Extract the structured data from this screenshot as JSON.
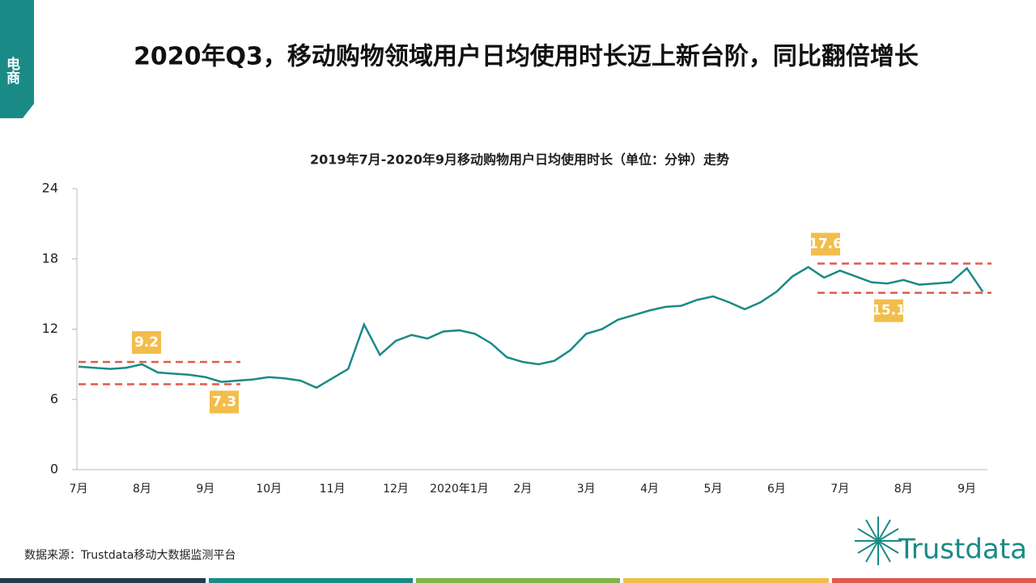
{
  "page": {
    "tab": "电商",
    "headline": "2020年Q3，移动购物领域用户日均使用时长迈上新台阶，同比翻倍增长",
    "source": "数据来源：Trustdata移动大数据监测平台",
    "logo": "Trustdata"
  },
  "chart_data": {
    "type": "line",
    "title": "2019年7月-2020年9月移动购物用户日均使用时长（单位：分钟）走势",
    "categories": [
      "7月",
      null,
      null,
      null,
      "8月",
      null,
      null,
      null,
      "9月",
      null,
      null,
      null,
      "10月",
      null,
      null,
      null,
      "11月",
      null,
      null,
      null,
      "12月",
      null,
      null,
      null,
      "2020年1月",
      null,
      null,
      null,
      "2月",
      null,
      null,
      null,
      "3月",
      null,
      null,
      null,
      "4月",
      null,
      null,
      null,
      "5月",
      null,
      null,
      null,
      "6月",
      null,
      null,
      null,
      "7月",
      null,
      null,
      null,
      "8月",
      null,
      null,
      null,
      "9月",
      null
    ],
    "series": [
      {
        "name": "移动购物用户日均使用时长",
        "color": "#1a8a87",
        "values": [
          8.8,
          8.7,
          8.6,
          8.7,
          9.0,
          8.3,
          8.2,
          8.1,
          7.9,
          7.5,
          7.6,
          7.7,
          7.9,
          7.8,
          7.6,
          7.0,
          7.8,
          8.6,
          12.4,
          9.8,
          11.0,
          11.5,
          11.2,
          11.8,
          11.9,
          11.6,
          10.8,
          9.6,
          9.2,
          9.0,
          9.3,
          10.2,
          11.6,
          12.0,
          12.8,
          13.2,
          13.6,
          13.9,
          14.0,
          14.5,
          14.8,
          14.3,
          13.7,
          14.3,
          15.2,
          16.5,
          17.3,
          16.4,
          17.0,
          16.5,
          16.0,
          15.9,
          16.2,
          15.8,
          15.9,
          16.0,
          17.2,
          15.2
        ]
      }
    ],
    "ylim": [
      0,
      24
    ],
    "yticks": [
      0,
      6,
      12,
      18,
      24
    ],
    "reference_lines": [
      {
        "value": 9.2
      },
      {
        "value": 7.3
      },
      {
        "value": 17.6
      },
      {
        "value": 15.1
      }
    ],
    "reference_color": "#e05a4e",
    "label_color": "#f2bd4b"
  }
}
